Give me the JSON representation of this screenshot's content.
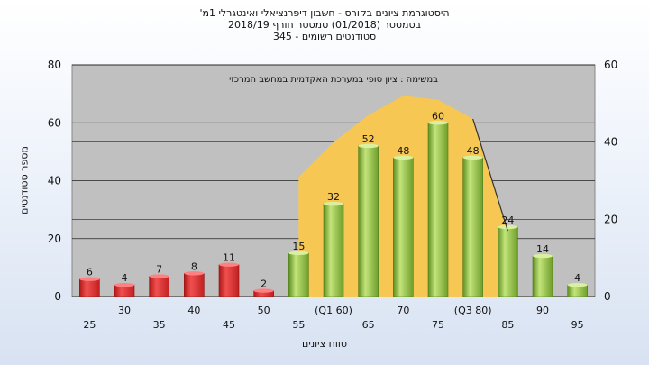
{
  "title": {
    "line1": "'היסטוגרמת ציונים בקורס - חשבון דיפרנציאלי ואינטגרלי 1מ",
    "line2": "בסמסטר  (01/2018)  סמסטר חורף 2018/19",
    "line3": "סטודנטים רשומים - 345"
  },
  "chart_data": {
    "type": "bar",
    "annotation": "במשימה : ציון סופי במערכת האקדמית במחשב המרכזי",
    "xlabel": "טווח ציונים",
    "ylabel": "מספר סטודנטים",
    "categories": [
      "25",
      "30",
      "35",
      "40",
      "45",
      "50",
      "55",
      "(Q1 60)",
      "65",
      "70",
      "75",
      "(Q3 80)",
      "85",
      "90",
      "95"
    ],
    "values": [
      6,
      4,
      7,
      8,
      11,
      2,
      15,
      32,
      52,
      48,
      60,
      48,
      24,
      14,
      4
    ],
    "bar_colors": [
      "red",
      "red",
      "red",
      "red",
      "red",
      "red",
      "green",
      "green",
      "green",
      "green",
      "green",
      "green",
      "green",
      "green",
      "green"
    ],
    "ylim_left": [
      0,
      80
    ],
    "yticks_left": [
      0,
      20,
      40,
      60,
      80
    ],
    "ylim_right": [
      0,
      60
    ],
    "yticks_right": [
      0,
      20,
      40,
      60
    ],
    "grid": true,
    "background_area": {
      "color": "#f6c752",
      "x_categories": [
        "55",
        "(Q1 60)",
        "65",
        "70",
        "75",
        "(Q3 80)"
      ],
      "right_axis_values": [
        31,
        40,
        47,
        52,
        51,
        46
      ]
    },
    "overlay_line": {
      "from_category": "(Q3 80)",
      "to_category": "85",
      "right_axis_values": [
        46,
        17
      ]
    },
    "colors": {
      "plot_background": "#c0c0c0",
      "bar_red": "#e03030",
      "bar_green": "#8fc63a",
      "area": "#f6c752"
    }
  }
}
